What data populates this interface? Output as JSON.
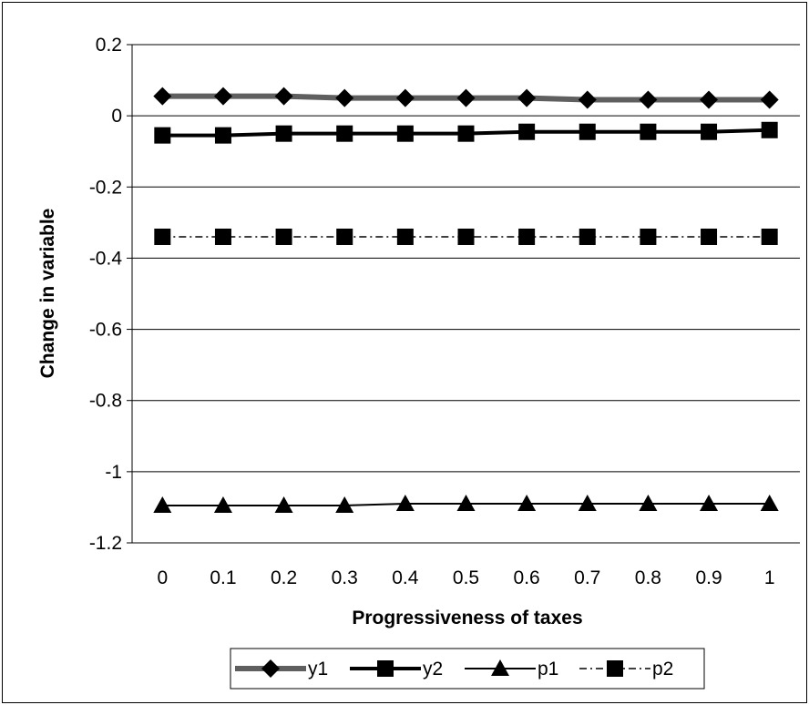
{
  "chart_data": {
    "type": "line",
    "title": "",
    "xlabel": "Progressiveness of taxes",
    "ylabel": "Change in variable",
    "x": [
      0,
      0.1,
      0.2,
      0.3,
      0.4,
      0.5,
      0.6,
      0.7,
      0.8,
      0.9,
      1
    ],
    "xtick_labels": [
      "0",
      "0.1",
      "0.2",
      "0.3",
      "0.4",
      "0.5",
      "0.6",
      "0.7",
      "0.8",
      "0.9",
      "1"
    ],
    "ylim": [
      -1.2,
      0.2
    ],
    "yticks": [
      0.2,
      0,
      -0.2,
      -0.4,
      -0.6,
      -0.8,
      -1,
      -1.2
    ],
    "ytick_labels": [
      "0.2",
      "0",
      "-0.2",
      "-0.4",
      "-0.6",
      "-0.8",
      "-1",
      "-1.2"
    ],
    "grid": "horizontal",
    "legend_position": "bottom",
    "series": [
      {
        "name": "y1",
        "marker": "diamond",
        "line_style": "solid",
        "color": "#5f5f5f",
        "values": [
          0.055,
          0.055,
          0.055,
          0.05,
          0.05,
          0.05,
          0.05,
          0.045,
          0.045,
          0.045,
          0.045
        ]
      },
      {
        "name": "y2",
        "marker": "square",
        "line_style": "solid",
        "color": "#000000",
        "values": [
          -0.055,
          -0.055,
          -0.05,
          -0.05,
          -0.05,
          -0.05,
          -0.045,
          -0.045,
          -0.045,
          -0.045,
          -0.04
        ]
      },
      {
        "name": "p1",
        "marker": "triangle",
        "line_style": "solid",
        "color": "#000000",
        "values": [
          -1.095,
          -1.095,
          -1.095,
          -1.095,
          -1.09,
          -1.09,
          -1.09,
          -1.09,
          -1.09,
          -1.09,
          -1.09
        ]
      },
      {
        "name": "p2",
        "marker": "square",
        "line_style": "dash-dot",
        "color": "#000000",
        "values": [
          -0.34,
          -0.34,
          -0.34,
          -0.34,
          -0.34,
          -0.34,
          -0.34,
          -0.34,
          -0.34,
          -0.34,
          -0.34
        ]
      }
    ]
  }
}
